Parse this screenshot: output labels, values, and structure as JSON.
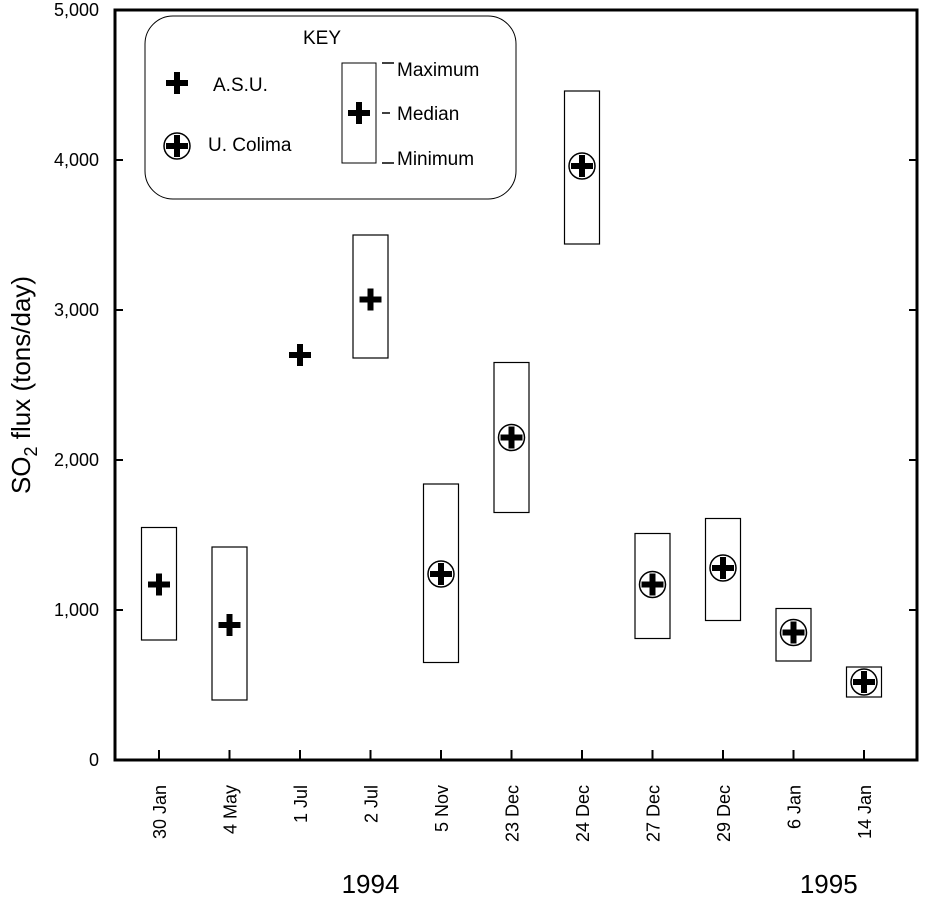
{
  "chart_data": {
    "type": "box",
    "ylabel_main": "SO",
    "ylabel_sub": "2",
    "ylabel_rest": " flux (tons/day)",
    "ylim": [
      0,
      5000
    ],
    "yticks": [
      0,
      1000,
      2000,
      3000,
      4000,
      5000
    ],
    "ytick_labels": [
      "0",
      "1,000",
      "2,000",
      "3,000",
      "4,000",
      "5,000"
    ],
    "categories": [
      "30 Jan",
      "4 May",
      "1  Jul",
      "2 Jul",
      "5 Nov",
      "23 Dec",
      "24 Dec",
      "27 Dec",
      "29 Dec",
      "6  Jan",
      "14 Jan"
    ],
    "year_labels": [
      {
        "text": "1994",
        "category_index": 3
      },
      {
        "text": "1995",
        "category_index": 9.5
      }
    ],
    "series": [
      {
        "name": "A.S.U.",
        "points": [
          {
            "category": "30 Jan",
            "min": 800,
            "median": 1170,
            "max": 1550
          },
          {
            "category": "4 May",
            "min": 400,
            "median": 900,
            "max": 1420
          },
          {
            "category": "1  Jul",
            "min": null,
            "median": 2700,
            "max": null
          },
          {
            "category": "2 Jul",
            "min": 2680,
            "median": 3070,
            "max": 3500
          }
        ]
      },
      {
        "name": "U. Colima",
        "points": [
          {
            "category": "5 Nov",
            "min": 650,
            "median": 1240,
            "max": 1840
          },
          {
            "category": "23 Dec",
            "min": 1650,
            "median": 2150,
            "max": 2650
          },
          {
            "category": "24 Dec",
            "min": 3440,
            "median": 3960,
            "max": 4460
          },
          {
            "category": "27 Dec",
            "min": 810,
            "median": 1170,
            "max": 1510
          },
          {
            "category": "29 Dec",
            "min": 930,
            "median": 1280,
            "max": 1610
          },
          {
            "category": "6  Jan",
            "min": 660,
            "median": 850,
            "max": 1010
          },
          {
            "category": "14 Jan",
            "min": 420,
            "median": 520,
            "max": 620
          }
        ]
      }
    ],
    "key": {
      "title": "KEY",
      "asu_label": "A.S.U.",
      "colima_label": "U. Colima",
      "max_label": "Maximum",
      "median_label": "Median",
      "min_label": "Minimum"
    }
  }
}
